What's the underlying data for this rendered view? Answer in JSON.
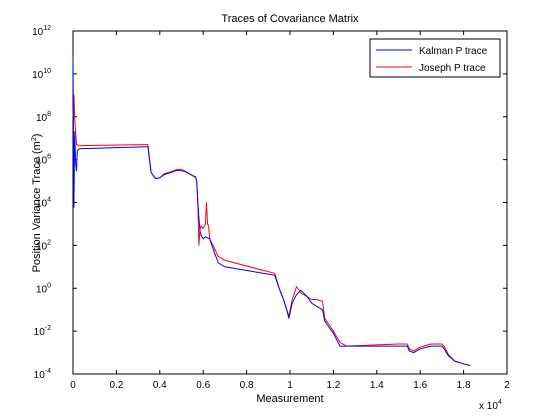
{
  "chart_data": {
    "type": "line",
    "title": "Traces of Covariance Matrix",
    "xlabel": "Measurement",
    "ylabel": "Position Variance Trace (m",
    "ylabel_sup": "2",
    "ylabel_close": ")",
    "xlim": [
      0,
      20000
    ],
    "ylim": [
      0.0001,
      1000000000000
    ],
    "yscale": "log",
    "x_tick_values": [
      0,
      2000,
      4000,
      6000,
      8000,
      10000,
      12000,
      14000,
      16000,
      18000,
      20000
    ],
    "x_tick_labels": [
      "0",
      "0.2",
      "0.4",
      "0.6",
      "0.8",
      "1",
      "1.2",
      "1.4",
      "1.6",
      "1.8",
      "2"
    ],
    "x_exponent_base": "x 10",
    "x_exponent_power": "4",
    "y_tick_values": [
      0.0001,
      0.01,
      1,
      100,
      10000,
      1000000,
      100000000,
      10000000000,
      1000000000000
    ],
    "y_tick_base": "10",
    "y_tick_exponents": [
      "-4",
      "-2",
      "0",
      "2",
      "4",
      "6",
      "8",
      "10",
      "12"
    ],
    "grid": false,
    "legend_position": "top-right",
    "series": [
      {
        "name": "Kalman P trace",
        "color": "#0000ff",
        "x": [
          0,
          40,
          80,
          120,
          160,
          200,
          250,
          320,
          3400,
          3450,
          3600,
          3800,
          4000,
          4200,
          4500,
          4800,
          5000,
          5200,
          5500,
          5650,
          5700,
          5750,
          5800,
          5850,
          5900,
          6000,
          6100,
          6300,
          6500,
          6700,
          7000,
          9300,
          9500,
          9700,
          9850,
          9950,
          10100,
          10300,
          10500,
          10800,
          11000,
          11200,
          11500,
          11600,
          11800,
          12000,
          12300,
          12600,
          15000,
          15400,
          15500,
          15700,
          16000,
          16500,
          17000,
          17100,
          17300,
          17600,
          18000,
          18300
        ],
        "y": [
          63000000000,
          6000,
          20000000,
          700000,
          300000,
          2500000,
          3000000,
          3200000,
          4000000,
          4000000,
          250000,
          130000,
          140000,
          200000,
          250000,
          320000,
          300000,
          270000,
          180000,
          150000,
          100000,
          10000,
          2000,
          500,
          300,
          200,
          250,
          200,
          50,
          15,
          10,
          4,
          1,
          0.3,
          0.1,
          0.04,
          0.2,
          0.5,
          0.8,
          0.4,
          0.2,
          0.15,
          0.1,
          0.03,
          0.015,
          0.008,
          0.002,
          0.002,
          0.002,
          0.002,
          0.0012,
          0.001,
          0.0015,
          0.002,
          0.002,
          0.0015,
          0.0007,
          0.0004,
          0.0003,
          0.00025
        ]
      },
      {
        "name": "Joseph P trace",
        "color": "#ff0000",
        "x": [
          0,
          40,
          80,
          120,
          160,
          200,
          250,
          320,
          3400,
          3450,
          3600,
          3800,
          4000,
          4200,
          4500,
          4800,
          5000,
          5200,
          5500,
          5650,
          5700,
          5750,
          5800,
          5850,
          5900,
          6000,
          6100,
          6150,
          6200,
          6250,
          6300,
          6500,
          6700,
          7000,
          9300,
          9500,
          9700,
          9850,
          9950,
          10100,
          10300,
          10500,
          10800,
          11000,
          11200,
          11500,
          11600,
          11800,
          12000,
          12300,
          12600,
          15000,
          15400,
          15500,
          15700,
          16000,
          16500,
          17000,
          17100,
          17300,
          17600,
          18000,
          18300
        ],
        "y": [
          100000000,
          1000000000,
          80000000,
          20000000,
          5000000,
          5000000,
          4500000,
          4500000,
          5000000,
          5000000,
          250000,
          130000,
          140000,
          220000,
          270000,
          350000,
          350000,
          280000,
          180000,
          160000,
          100000,
          10000,
          100,
          500,
          800,
          600,
          1000,
          10000,
          1000,
          800,
          200,
          80,
          30,
          20,
          5,
          1,
          0.3,
          0.1,
          0.05,
          0.3,
          1.2,
          0.6,
          0.4,
          0.3,
          0.3,
          0.25,
          0.04,
          0.02,
          0.01,
          0.003,
          0.002,
          0.0025,
          0.0025,
          0.0015,
          0.0012,
          0.0018,
          0.0025,
          0.0025,
          0.002,
          0.0008,
          0.0004,
          0.0003,
          0.00025
        ]
      }
    ]
  }
}
